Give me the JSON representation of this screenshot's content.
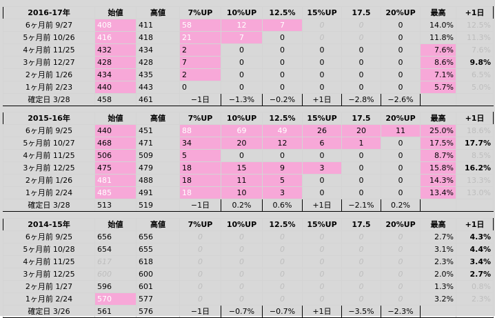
{
  "headers": [
    "始値",
    "高値",
    "7%UP",
    "10%UP",
    "12.5%",
    "15%UP",
    "17.5",
    "20%UP",
    "最高",
    "+1日"
  ],
  "tables": [
    {
      "title": "2016-17年",
      "rows": [
        {
          "label": "6ヶ月前  9/27",
          "open": "408",
          "high": "411",
          "u7": "58",
          "u10": "12",
          "u125": "7",
          "u15": "0",
          "u175": "0",
          "u20": "0",
          "max": "14.0%",
          "plus1": "12.5%"
        },
        {
          "label": "5ヶ月前 10/26",
          "open": "416",
          "high": "418",
          "u7": "21",
          "u10": "7",
          "u125": "0",
          "u15": "0",
          "u175": "0",
          "u20": "0",
          "max": "11.8%",
          "plus1": "11.3%"
        },
        {
          "label": "4ヶ月前 11/25",
          "open": "432",
          "high": "434",
          "u7": "2",
          "u10": "0",
          "u125": "0",
          "u15": "0",
          "u175": "0",
          "u20": "0",
          "max": "7.6%",
          "plus1": "7.6%"
        },
        {
          "label": "3ヶ月前 12/27",
          "open": "428",
          "high": "428",
          "u7": "7",
          "u10": "0",
          "u125": "0",
          "u15": "0",
          "u175": "0",
          "u20": "0",
          "max": "8.6%",
          "plus1": "9.8%"
        },
        {
          "label": "2ヶ月前  1/26",
          "open": "434",
          "high": "435",
          "u7": "2",
          "u10": "0",
          "u125": "0",
          "u15": "0",
          "u175": "0",
          "u20": "0",
          "max": "7.1%",
          "plus1": "6.5%"
        },
        {
          "label": "1ヶ月前  2/23",
          "open": "440",
          "high": "443",
          "u7": "0",
          "u10": "0",
          "u125": "0",
          "u15": "0",
          "u175": "0",
          "u20": "0",
          "max": "5.7%",
          "plus1": "5.0%"
        }
      ],
      "final": {
        "label": "確定日  3/28",
        "open": "458",
        "high": "461",
        "u7": "−1日",
        "u10": "−1.3%",
        "u125": "−0.2%",
        "u15": "+1日",
        "u175": "−2.8%",
        "u20": "−2.6%"
      }
    },
    {
      "title": "2015-16年",
      "rows": [
        {
          "label": "6ヶ月前  9/25",
          "open": "440",
          "high": "451",
          "u7": "88",
          "u10": "69",
          "u125": "49",
          "u15": "26",
          "u175": "20",
          "u20": "11",
          "max": "25.0%",
          "plus1": "18.6%"
        },
        {
          "label": "5ヶ月前 10/27",
          "open": "468",
          "high": "471",
          "u7": "34",
          "u10": "20",
          "u125": "12",
          "u15": "6",
          "u175": "1",
          "u20": "0",
          "max": "17.5%",
          "plus1": "17.7%"
        },
        {
          "label": "4ヶ月前 11/25",
          "open": "506",
          "high": "509",
          "u7": "5",
          "u10": "0",
          "u125": "0",
          "u15": "0",
          "u175": "0",
          "u20": "0",
          "max": "8.7%",
          "plus1": "8.5%"
        },
        {
          "label": "3ヶ月前 12/25",
          "open": "475",
          "high": "479",
          "u7": "18",
          "u10": "15",
          "u125": "9",
          "u15": "3",
          "u175": "0",
          "u20": "0",
          "max": "15.8%",
          "plus1": "16.2%"
        },
        {
          "label": "2ヶ月前  1/26",
          "open": "481",
          "high": "488",
          "u7": "18",
          "u10": "11",
          "u125": "5",
          "u15": "0",
          "u175": "0",
          "u20": "0",
          "max": "14.3%",
          "plus1": "13.3%"
        },
        {
          "label": "1ヶ月前  2/24",
          "open": "485",
          "high": "491",
          "u7": "18",
          "u10": "10",
          "u125": "3",
          "u15": "0",
          "u175": "0",
          "u20": "0",
          "max": "13.4%",
          "plus1": "13.0%"
        }
      ],
      "final": {
        "label": "確定日  3/28",
        "open": "513",
        "high": "519",
        "u7": "−1日",
        "u10": "0.2%",
        "u125": "0.6%",
        "u15": "+1日",
        "u175": "−2.1%",
        "u20": "0.2%"
      }
    },
    {
      "title": "2014-15年",
      "rows": [
        {
          "label": "6ヶ月前  9/25",
          "open": "656",
          "high": "656",
          "u7": "0",
          "u10": "0",
          "u125": "0",
          "u15": "0",
          "u175": "0",
          "u20": "0",
          "max": "2.7%",
          "plus1": "4.3%"
        },
        {
          "label": "5ヶ月前 10/28",
          "open": "654",
          "high": "655",
          "u7": "0",
          "u10": "0",
          "u125": "0",
          "u15": "0",
          "u175": "0",
          "u20": "0",
          "max": "3.1%",
          "plus1": "4.4%"
        },
        {
          "label": "4ヶ月前 11/25",
          "open": "617",
          "high": "618",
          "u7": "0",
          "u10": "0",
          "u125": "0",
          "u15": "0",
          "u175": "0",
          "u20": "0",
          "max": "2.3%",
          "plus1": "3.4%"
        },
        {
          "label": "3ヶ月前 12/25",
          "open": "600",
          "high": "600",
          "u7": "0",
          "u10": "0",
          "u125": "0",
          "u15": "0",
          "u175": "0",
          "u20": "0",
          "max": "2.0%",
          "plus1": "2.7%"
        },
        {
          "label": "2ヶ月前  1/27",
          "open": "596",
          "high": "601",
          "u7": "0",
          "u10": "0",
          "u125": "0",
          "u15": "0",
          "u175": "0",
          "u20": "0",
          "max": "1.3%",
          "plus1": "0.8%"
        },
        {
          "label": "1ヶ月前  2/24",
          "open": "570",
          "high": "577",
          "u7": "0",
          "u10": "0",
          "u125": "0",
          "u15": "0",
          "u175": "0",
          "u20": "0",
          "max": "3.2%",
          "plus1": "2.3%"
        }
      ],
      "final": {
        "label": "確定日  3/26",
        "open": "561",
        "high": "576",
        "u7": "−1日",
        "u10": "−0.7%",
        "u125": "−0.7%",
        "u15": "+1日",
        "u175": "−3.5%",
        "u20": "−2.3%"
      }
    }
  ],
  "colors": {
    "highlight": "#f7a8d8",
    "muted_text": "#bdbdbd",
    "grid": "#d4d4d4"
  }
}
